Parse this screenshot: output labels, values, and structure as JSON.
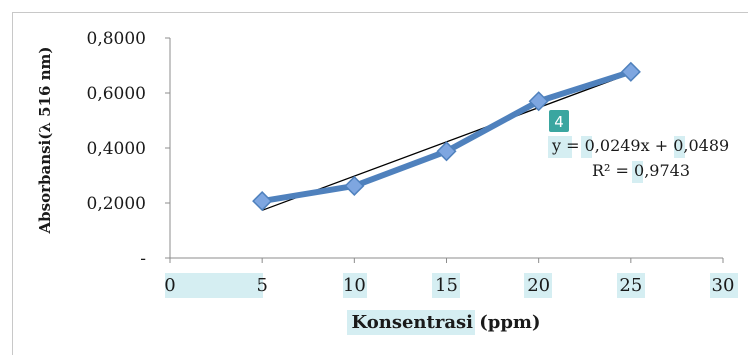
{
  "chart_data": {
    "type": "line",
    "xlabel_parts": [
      "Konsentrasi",
      " (ppm)"
    ],
    "ylabel": "Absorbansi(λ 516 nm)",
    "x_ticks": [
      "0",
      "5",
      "10",
      "15",
      "20",
      "25",
      "30"
    ],
    "y_ticks": [
      "-",
      "0,2000",
      "0,4000",
      "0,6000",
      "0,8000"
    ],
    "xlim": [
      0,
      30
    ],
    "ylim": [
      0,
      0.8
    ],
    "grid": false,
    "series": [
      {
        "x": [
          5,
          10,
          15,
          20,
          25
        ],
        "values": [
          0.207,
          0.262,
          0.388,
          0.57,
          0.677
        ],
        "color": "#4f81bd",
        "marker": "diamond",
        "marker_fill": "#7ea6e0"
      }
    ],
    "trendline": {
      "type": "linear",
      "slope": 0.0249,
      "intercept": 0.0489,
      "x_range": [
        5,
        25
      ],
      "color": "#000000"
    },
    "annotations": {
      "badge": "4",
      "badge_color": "#3aa6a0",
      "equation": "y = 0,0249x + 0,0489",
      "r_squared": "R² = 0,9743"
    },
    "highlight_color": "#d5eef2"
  }
}
